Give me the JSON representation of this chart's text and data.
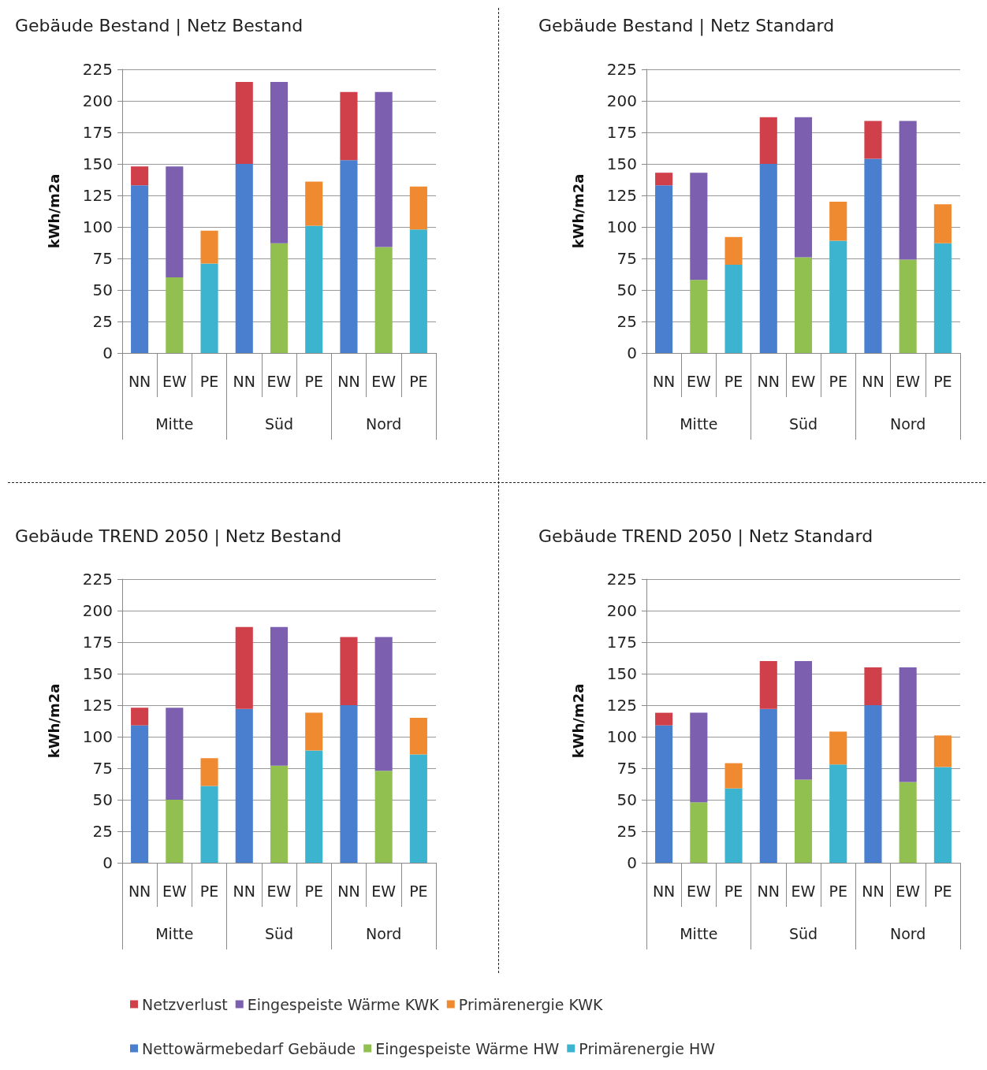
{
  "chart_data": [
    {
      "type": "bar",
      "title": "Gebäude Bestand | Netz Bestand",
      "ylabel": "kWh/m2a",
      "stacked": true,
      "grid": "y",
      "categories": [
        "NN",
        "EW",
        "PE",
        "NN",
        "EW",
        "PE",
        "NN",
        "EW",
        "PE"
      ],
      "annotations": [
        "Mitte",
        "Süd",
        "Nord"
      ],
      "ylim": [
        0,
        225
      ],
      "yticks": [
        0,
        25,
        50,
        75,
        100,
        125,
        150,
        175,
        200,
        225
      ],
      "series": [
        {
          "color": "#4a7fd0",
          "values": [
            133,
            null,
            null,
            150,
            null,
            null,
            153,
            null,
            null
          ]
        },
        {
          "color": "#92c050",
          "values": [
            null,
            60,
            null,
            null,
            87,
            null,
            null,
            84,
            null
          ]
        },
        {
          "color": "#3cb4d0",
          "values": [
            null,
            null,
            71,
            null,
            null,
            101,
            null,
            null,
            98
          ]
        },
        {
          "color": "#d0404a",
          "values": [
            15,
            null,
            null,
            65,
            null,
            null,
            54,
            null,
            null
          ]
        },
        {
          "color": "#7d5fb0",
          "values": [
            null,
            88,
            null,
            null,
            128,
            null,
            null,
            123,
            null
          ]
        },
        {
          "color": "#f08a30",
          "values": [
            null,
            null,
            26,
            null,
            null,
            35,
            null,
            null,
            34
          ]
        }
      ]
    },
    {
      "type": "bar",
      "title": "Gebäude Bestand | Netz Standard",
      "ylabel": "kWh/m2a",
      "stacked": true,
      "grid": "y",
      "categories": [
        "NN",
        "EW",
        "PE",
        "NN",
        "EW",
        "PE",
        "NN",
        "EW",
        "PE"
      ],
      "annotations": [
        "Mitte",
        "Süd",
        "Nord"
      ],
      "ylim": [
        0,
        225
      ],
      "yticks": [
        0,
        25,
        50,
        75,
        100,
        125,
        150,
        175,
        200,
        225
      ],
      "series": [
        {
          "color": "#4a7fd0",
          "values": [
            133,
            null,
            null,
            150,
            null,
            null,
            154,
            null,
            null
          ]
        },
        {
          "color": "#92c050",
          "values": [
            null,
            58,
            null,
            null,
            76,
            null,
            null,
            74,
            null
          ]
        },
        {
          "color": "#3cb4d0",
          "values": [
            null,
            null,
            70,
            null,
            null,
            89,
            null,
            null,
            87
          ]
        },
        {
          "color": "#d0404a",
          "values": [
            10,
            null,
            null,
            37,
            null,
            null,
            30,
            null,
            null
          ]
        },
        {
          "color": "#7d5fb0",
          "values": [
            null,
            85,
            null,
            null,
            111,
            null,
            null,
            110,
            null
          ]
        },
        {
          "color": "#f08a30",
          "values": [
            null,
            null,
            22,
            null,
            null,
            31,
            null,
            null,
            31
          ]
        }
      ]
    },
    {
      "type": "bar",
      "title": "Gebäude TREND 2050 | Netz Bestand",
      "ylabel": "kWh/m2a",
      "stacked": true,
      "grid": "y",
      "categories": [
        "NN",
        "EW",
        "PE",
        "NN",
        "EW",
        "PE",
        "NN",
        "EW",
        "PE"
      ],
      "annotations": [
        "Mitte",
        "Süd",
        "Nord"
      ],
      "ylim": [
        0,
        225
      ],
      "yticks": [
        0,
        25,
        50,
        75,
        100,
        125,
        150,
        175,
        200,
        225
      ],
      "series": [
        {
          "color": "#4a7fd0",
          "values": [
            109,
            null,
            null,
            122,
            null,
            null,
            125,
            null,
            null
          ]
        },
        {
          "color": "#92c050",
          "values": [
            null,
            50,
            null,
            null,
            77,
            null,
            null,
            73,
            null
          ]
        },
        {
          "color": "#3cb4d0",
          "values": [
            null,
            null,
            61,
            null,
            null,
            89,
            null,
            null,
            86
          ]
        },
        {
          "color": "#d0404a",
          "values": [
            14,
            null,
            null,
            65,
            null,
            null,
            54,
            null,
            null
          ]
        },
        {
          "color": "#7d5fb0",
          "values": [
            null,
            73,
            null,
            null,
            110,
            null,
            null,
            106,
            null
          ]
        },
        {
          "color": "#f08a30",
          "values": [
            null,
            null,
            22,
            null,
            null,
            30,
            null,
            null,
            29
          ]
        }
      ]
    },
    {
      "type": "bar",
      "title": "Gebäude TREND 2050 | Netz Standard",
      "ylabel": "kWh/m2a",
      "stacked": true,
      "grid": "y",
      "legend": "bottom",
      "categories": [
        "NN",
        "EW",
        "PE",
        "NN",
        "EW",
        "PE",
        "NN",
        "EW",
        "PE"
      ],
      "annotations": [
        "Mitte",
        "Süd",
        "Nord"
      ],
      "ylim": [
        0,
        225
      ],
      "yticks": [
        0,
        25,
        50,
        75,
        100,
        125,
        150,
        175,
        200,
        225
      ],
      "series": [
        {
          "name": "Nettowärmebedarf Gebäude",
          "color": "#4a7fd0",
          "values": [
            109,
            null,
            null,
            122,
            null,
            null,
            125,
            null,
            null
          ]
        },
        {
          "name": "Eingespeiste Wärme HW",
          "color": "#92c050",
          "values": [
            null,
            48,
            null,
            null,
            66,
            null,
            null,
            64,
            null
          ]
        },
        {
          "name": "Primärenergie HW",
          "color": "#3cb4d0",
          "values": [
            null,
            null,
            59,
            null,
            null,
            78,
            null,
            null,
            76
          ]
        },
        {
          "name": "Netzverlust",
          "color": "#d0404a",
          "values": [
            10,
            null,
            null,
            38,
            null,
            null,
            30,
            null,
            null
          ]
        },
        {
          "name": "Eingespeiste Wärme KWK",
          "color": "#7d5fb0",
          "values": [
            null,
            71,
            null,
            null,
            94,
            null,
            null,
            91,
            null
          ]
        },
        {
          "name": "Primärenergie KWK",
          "color": "#f08a30",
          "values": [
            null,
            null,
            20,
            null,
            null,
            26,
            null,
            null,
            25
          ]
        }
      ]
    }
  ]
}
